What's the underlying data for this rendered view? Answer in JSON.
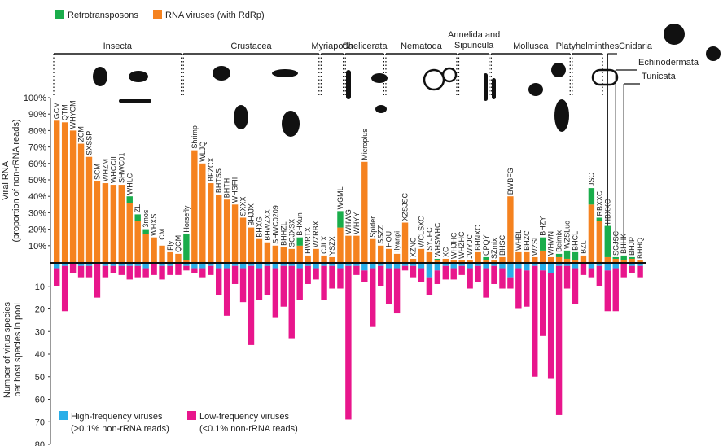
{
  "chart_data": {
    "type": "bar",
    "legend_top": [
      {
        "name": "Retrotransposons",
        "color": "#1aad4b"
      },
      {
        "name": "RNA viruses (with RdRp)",
        "color": "#f5821f"
      }
    ],
    "legend_bottom": [
      {
        "name": "High-frequency viruses",
        "sub": "(>0.1% non-rRNA reads)",
        "color": "#29aee8"
      },
      {
        "name": "Low-frequency viruses",
        "sub": "(<0.1% non-rRNA reads)",
        "color": "#e8168c"
      }
    ],
    "ylabel_top": [
      "Viral RNA",
      "(proportion of non-rRNA reads)"
    ],
    "ylabel_bottom": [
      "Number of virus species",
      "per host species in pool"
    ],
    "yticks_top": [
      "10%",
      "20%",
      "30%",
      "40%",
      "50%",
      "60%",
      "70%",
      "80%",
      "90%",
      "100%"
    ],
    "yticks_bottom": [
      "10",
      "20",
      "30",
      "40",
      "50",
      "60",
      "70",
      "80"
    ],
    "ylim_top": [
      0,
      100
    ],
    "ylim_bottom": [
      0,
      80
    ],
    "groups": [
      {
        "name": "Insecta",
        "from": 0,
        "to": 15
      },
      {
        "name": "Crustacea",
        "from": 16,
        "to": 32
      },
      {
        "name": "Myriapoda",
        "from": 33,
        "to": 35
      },
      {
        "name": "Chelicerata",
        "from": 36,
        "to": 40
      },
      {
        "name": "Nematoda",
        "from": 41,
        "to": 49
      },
      {
        "name": "Annelida and Sipuncula",
        "from": 50,
        "to": 53
      },
      {
        "name": "Mollusca",
        "from": 54,
        "to": 63
      },
      {
        "name": "Platyhelminthes",
        "from": 64,
        "to": 67
      },
      {
        "name": "Cnidaria",
        "from": 68,
        "to": 68
      },
      {
        "name": "Echinodermata",
        "from": 69,
        "to": 69
      },
      {
        "name": "Tunicata",
        "from": 70,
        "to": 70
      }
    ],
    "categories": [
      "GCM",
      "QTM",
      "WHYCM",
      "ZCM",
      "SXSSP",
      "SCM",
      "WHZM",
      "WHCCII",
      "SHWC01",
      "WHLC",
      "ZL",
      "3mos",
      "WHXS",
      "LCM",
      "Fly",
      "QCM",
      "Horsefly",
      "Shrimp",
      "WLJQ",
      "BFZCX",
      "BHTSS",
      "BHTH",
      "WHSFII",
      "SXXX",
      "BHJJX",
      "BHXG",
      "BHWZXX",
      "SHWC0209",
      "BHHZL",
      "SCJXSX",
      "BHXun",
      "HWRTX",
      "WZRBX",
      "CJLX",
      "YSZX",
      "WGML",
      "WHWG",
      "WHYY",
      "Microplus",
      "Spider",
      "SSZZ",
      "HOU",
      "Ilyanpi",
      "XZSJSC",
      "XZNC",
      "WCLSXC",
      "SYJFC",
      "WHSWHC",
      "XC",
      "WHJHC",
      "WHZHC",
      "JWYJC",
      "BHNXC",
      "CPQY",
      "SZmix",
      "BHSC",
      "BWBFG",
      "WHBL",
      "BHZC",
      "WZSL",
      "BHZY",
      "WHWN",
      "Beimix",
      "WZSLuo",
      "BHCL",
      "BZL",
      "JSC",
      "RBXXC",
      "HBXXC",
      "SGJSC",
      "BHHK",
      "BHJP",
      "BHHQ"
    ],
    "rna_virus_pct": [
      86,
      85,
      80,
      72,
      64,
      49,
      48,
      47,
      47,
      36,
      25,
      17,
      15,
      10,
      6,
      5,
      1,
      68,
      60,
      48,
      41,
      38,
      35,
      27,
      21,
      14,
      12,
      10,
      9,
      8,
      10,
      4,
      8,
      4,
      3,
      21,
      16,
      16,
      61,
      14,
      10,
      8,
      5,
      24,
      2,
      8,
      6,
      1,
      2,
      1,
      1,
      1,
      6,
      1,
      1,
      3,
      40,
      6,
      6,
      3,
      7,
      3,
      3,
      2,
      1,
      4,
      35,
      25,
      3,
      2,
      1,
      2,
      1
    ],
    "retro_pct": [
      0,
      0,
      0,
      0,
      0,
      0,
      0,
      0,
      0,
      4,
      4,
      3,
      0,
      0,
      0,
      0,
      16,
      0,
      0,
      0,
      0,
      0,
      0,
      0,
      0,
      0,
      0,
      0,
      0,
      0,
      5,
      0,
      0,
      0,
      0,
      10,
      0,
      0,
      0,
      0,
      0,
      0,
      0,
      0,
      0,
      0,
      0,
      1,
      0,
      0,
      0,
      0,
      0,
      2,
      0,
      0,
      0,
      0,
      0,
      0,
      8,
      0,
      2,
      5,
      5,
      0,
      10,
      2,
      19,
      1,
      3,
      1,
      0
    ],
    "high_freq_species": [
      2,
      1,
      0,
      1,
      1,
      0,
      1,
      1,
      1,
      1,
      1,
      2,
      0,
      1,
      1,
      0,
      1,
      2,
      2,
      1,
      2,
      2,
      1,
      2,
      1,
      2,
      1,
      2,
      1,
      1,
      2,
      1,
      2,
      1,
      1,
      2,
      1,
      1,
      3,
      2,
      1,
      2,
      2,
      1,
      1,
      2,
      6,
      3,
      1,
      2,
      1,
      2,
      1,
      2,
      1,
      2,
      6,
      2,
      3,
      1,
      3,
      4,
      1,
      1,
      2,
      0,
      2,
      1,
      3,
      2,
      0,
      1,
      1
    ],
    "low_freq_species": [
      8,
      20,
      4,
      5,
      5,
      15,
      5,
      3,
      4,
      6,
      5,
      4,
      5,
      6,
      4,
      5,
      2,
      2,
      4,
      4,
      12,
      21,
      8,
      15,
      35,
      14,
      13,
      22,
      18,
      32,
      14,
      8,
      5,
      15,
      10,
      9,
      68,
      4,
      5,
      26,
      9,
      16,
      20,
      2,
      5,
      6,
      8,
      6,
      6,
      5,
      4,
      9,
      7,
      13,
      8,
      9,
      5,
      18,
      16,
      49,
      29,
      47,
      66,
      10,
      16,
      5,
      4,
      9,
      18,
      19,
      6,
      3,
      5
    ]
  }
}
